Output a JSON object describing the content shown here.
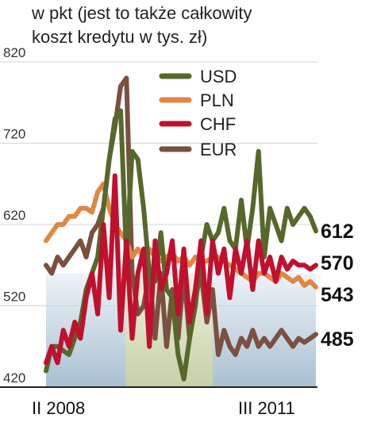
{
  "header": {
    "line1": "w pkt (jest to także całkowity",
    "line2": "koszt kredytu w tys. zł)"
  },
  "chart_data": {
    "type": "line",
    "y_ticks": [
      820,
      720,
      620,
      520,
      420
    ],
    "ylim": [
      420,
      820
    ],
    "x_labels": [
      "II 2008",
      "III 2011"
    ],
    "legend_position": "top-center",
    "series": [
      {
        "name": "USD",
        "color": "#56682a",
        "end_label": "612",
        "values": [
          440,
          470,
          470,
          465,
          460,
          480,
          500,
          540,
          560,
          580,
          640,
          700,
          750,
          760,
          580,
          710,
          700,
          640,
          560,
          550,
          610,
          540,
          530,
          460,
          430,
          480,
          520,
          580,
          620,
          600,
          610,
          640,
          600,
          590,
          650,
          590,
          640,
          710,
          580,
          640,
          620,
          600,
          640,
          620,
          630,
          640,
          630,
          612
        ]
      },
      {
        "name": "PLN",
        "color": "#e08744",
        "end_label": "543",
        "values": [
          600,
          610,
          620,
          620,
          630,
          630,
          640,
          640,
          635,
          660,
          670,
          640,
          620,
          610,
          600,
          580,
          590,
          580,
          590,
          580,
          575,
          580,
          585,
          575,
          580,
          570,
          580,
          575,
          575,
          580,
          580,
          575,
          570,
          565,
          560,
          555,
          550,
          560,
          560,
          555,
          550,
          560,
          555,
          550,
          555,
          545,
          550,
          543
        ]
      },
      {
        "name": "CHF",
        "color": "#c0102e",
        "end_label": "570",
        "values": [
          450,
          470,
          450,
          490,
          470,
          500,
          480,
          530,
          560,
          510,
          620,
          530,
          680,
          490,
          600,
          480,
          560,
          590,
          470,
          600,
          540,
          560,
          600,
          510,
          590,
          500,
          540,
          600,
          510,
          600,
          560,
          590,
          530,
          590,
          560,
          600,
          540,
          600,
          560,
          580,
          550,
          580,
          565,
          575,
          570,
          570,
          565,
          570
        ]
      },
      {
        "name": "EUR",
        "color": "#7a5040",
        "end_label": "485",
        "values": [
          570,
          560,
          580,
          570,
          580,
          590,
          600,
          580,
          610,
          620,
          640,
          700,
          740,
          790,
          800,
          560,
          510,
          520,
          560,
          480,
          560,
          470,
          540,
          480,
          560,
          480,
          530,
          560,
          500,
          540,
          460,
          490,
          470,
          460,
          480,
          470,
          490,
          470,
          480,
          470,
          480,
          490,
          480,
          470,
          480,
          475,
          480,
          485
        ]
      }
    ]
  }
}
